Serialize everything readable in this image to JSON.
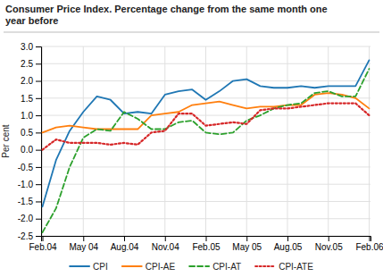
{
  "chart_data": {
    "type": "line",
    "title": "Consumer Price Index. Percentage change from the same month one\nyear before",
    "ylabel": "Per cent",
    "categories": [
      "Feb.04",
      null,
      null,
      "May 04",
      null,
      null,
      "Aug.04",
      null,
      null,
      "Nov.04",
      null,
      null,
      "Feb.05",
      null,
      null,
      "May 05",
      null,
      null,
      "Aug.05",
      null,
      null,
      "Nov.05",
      null,
      null,
      "Feb.06"
    ],
    "series": [
      {
        "name": "CPI",
        "line_style": "solid",
        "values": [
          -1.65,
          -0.3,
          0.55,
          1.1,
          1.55,
          1.45,
          1.05,
          1.1,
          1.05,
          1.6,
          1.7,
          1.75,
          1.45,
          1.7,
          2.0,
          2.05,
          1.85,
          1.8,
          1.8,
          1.85,
          1.8,
          1.85,
          1.85,
          1.85,
          2.6
        ]
      },
      {
        "name": "CPI-AE",
        "line_style": "solid",
        "values": [
          0.5,
          0.65,
          0.7,
          0.65,
          0.6,
          0.6,
          0.6,
          0.6,
          1.0,
          1.05,
          1.1,
          1.3,
          1.35,
          1.4,
          1.3,
          1.2,
          1.25,
          1.25,
          1.3,
          1.3,
          1.6,
          1.65,
          1.6,
          1.5,
          1.2
        ]
      },
      {
        "name": "CPI-AT",
        "line_style": "dashed",
        "values": [
          -2.4,
          -1.7,
          -0.5,
          0.35,
          0.6,
          0.55,
          1.1,
          0.9,
          0.6,
          0.6,
          0.8,
          0.85,
          0.5,
          0.45,
          0.5,
          0.85,
          1.0,
          1.2,
          1.3,
          1.35,
          1.65,
          1.7,
          1.55,
          1.55,
          2.35
        ]
      },
      {
        "name": "CPI-ATE",
        "line_style": "dotted",
        "values": [
          0.0,
          0.3,
          0.2,
          0.2,
          0.2,
          0.15,
          0.2,
          0.15,
          0.5,
          0.55,
          1.05,
          1.05,
          0.7,
          0.75,
          0.8,
          0.75,
          1.15,
          1.2,
          1.2,
          1.25,
          1.3,
          1.35,
          1.35,
          1.35,
          1.0
        ]
      }
    ],
    "ylim": [
      -2.5,
      3.0
    ],
    "yticks": [
      -2.5,
      {
        "value": -2,
        "label": "-2.0"
      },
      -1.5,
      {
        "value": -1,
        "label": "-1.0"
      },
      -0.5,
      {
        "value": 0,
        "label": "0.0"
      },
      0.5,
      {
        "value": 1,
        "label": "1.0"
      },
      1.5,
      {
        "value": 2,
        "label": "2.0"
      },
      2.5,
      {
        "value": 3,
        "label": "3.0"
      }
    ],
    "grid": true,
    "legend": "bottom"
  }
}
